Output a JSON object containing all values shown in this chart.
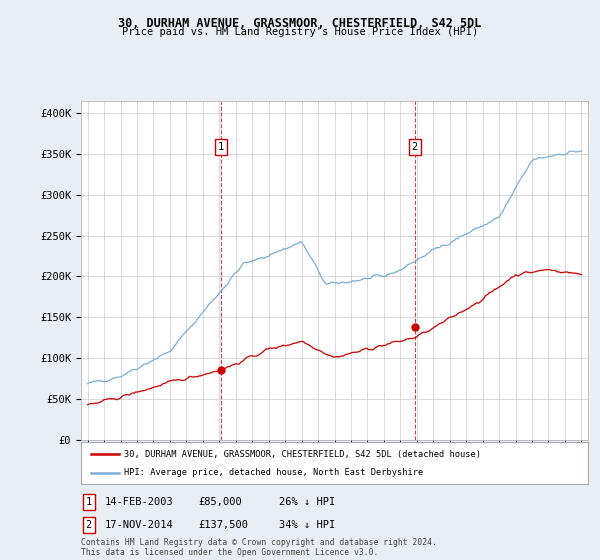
{
  "title": "30, DURHAM AVENUE, GRASSMOOR, CHESTERFIELD, S42 5DL",
  "subtitle": "Price paid vs. HM Land Registry's House Price Index (HPI)",
  "ylabel_ticks": [
    "£0",
    "£50K",
    "£100K",
    "£150K",
    "£200K",
    "£250K",
    "£300K",
    "£350K",
    "£400K"
  ],
  "ytick_values": [
    0,
    50000,
    100000,
    150000,
    200000,
    250000,
    300000,
    350000,
    400000
  ],
  "ylim": [
    0,
    420000
  ],
  "sale1_date": "14-FEB-2003",
  "sale1_price": 85000,
  "sale1_pct": "26% ↓ HPI",
  "sale2_date": "17-NOV-2014",
  "sale2_price": 137500,
  "sale2_pct": "34% ↓ HPI",
  "legend_line1": "30, DURHAM AVENUE, GRASSMOOR, CHESTERFIELD, S42 5DL (detached house)",
  "legend_line2": "HPI: Average price, detached house, North East Derbyshire",
  "footnote": "Contains HM Land Registry data © Crown copyright and database right 2024.\nThis data is licensed under the Open Government Licence v3.0.",
  "hpi_color": "#7aaed6",
  "price_color": "#cc0000",
  "vline_color": "#cc0000",
  "bg_color": "#e8eef4",
  "plot_bg": "#ffffff",
  "grid_color": "#cccccc",
  "xlim_left": 1994.6,
  "xlim_right": 2025.4
}
